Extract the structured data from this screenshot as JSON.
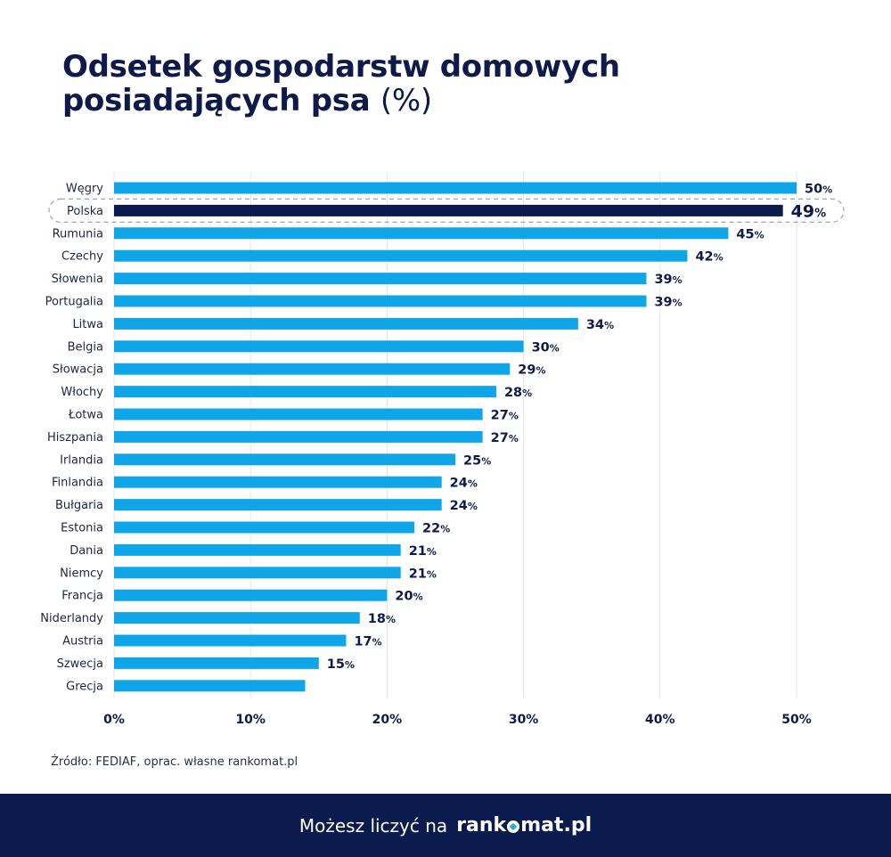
{
  "title": {
    "line1": "Odsetek gospodarstw domowych",
    "line2": "posiadających psa",
    "unit": "(%)"
  },
  "chart_data": {
    "type": "bar",
    "orientation": "horizontal",
    "categories": [
      "Węgry",
      "Polska",
      "Rumunia",
      "Czechy",
      "Słowenia",
      "Portugalia",
      "Litwa",
      "Belgia",
      "Słowacja",
      "Włochy",
      "Łotwa",
      "Hiszpania",
      "Irlandia",
      "Finlandia",
      "Bułgaria",
      "Estonia",
      "Dania",
      "Niemcy",
      "Francja",
      "Niderlandy",
      "Austria",
      "Szwecja",
      "Grecja"
    ],
    "values": [
      50,
      49,
      45,
      42,
      39,
      39,
      34,
      30,
      29,
      28,
      27,
      27,
      25,
      24,
      24,
      22,
      21,
      21,
      20,
      18,
      17,
      15,
      14
    ],
    "value_labels": [
      "50",
      "49",
      "45",
      "42",
      "39",
      "39",
      "34",
      "30",
      "29",
      "28",
      "27",
      "27",
      "25",
      "24",
      "24",
      "22",
      "21",
      "21",
      "20",
      "18",
      "17",
      "15",
      ""
    ],
    "value_suffix": "%",
    "highlight": "Polska",
    "xlim": [
      0,
      50
    ],
    "xticks": [
      "0%",
      "10%",
      "20%",
      "30%",
      "40%",
      "50%"
    ],
    "grid": true,
    "colors": {
      "bar": "#0ea5e9",
      "highlight": "#0b1b4d",
      "grid": "#e4e6ec",
      "highlight_outline": "#9aa3bf"
    }
  },
  "source": "Źródło: FEDIAF, oprac. własne rankomat.pl",
  "footer": {
    "text": "Możesz liczyć na",
    "brand_left": "rank",
    "brand_right": "mat.pl"
  }
}
